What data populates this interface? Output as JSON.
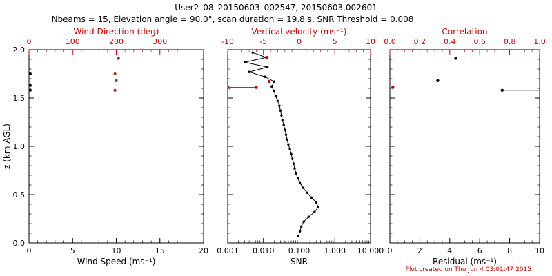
{
  "header": {
    "title": "User2_08_20150603_002547, 20150603.002601",
    "subtitle": "Nbeams = 15, Elevation angle = 90.0°, scan duration = 19.8 s, SNR Threshold = 0.008"
  },
  "footer": {
    "created": "Plot created on Thu Jun  4 03:01:47 2015"
  },
  "colors": {
    "axis_red": "#cc0000",
    "marker_dark_red": "#a03a22",
    "black": "#000000",
    "background": "#ffffff"
  },
  "y_axis": {
    "label": "z (km AGL)",
    "range": [
      0,
      2
    ],
    "ticks": [
      "0.0",
      "0.5",
      "1.0",
      "1.5",
      "2.0"
    ],
    "minor_step": 0.1
  },
  "chart_data": [
    {
      "type": "scatter",
      "id": "wind-panel",
      "bottom_axis": {
        "label": "Wind Speed (ms⁻¹)",
        "scale": "linear",
        "range": [
          0,
          20
        ],
        "ticks": [
          0,
          5,
          10,
          15,
          20
        ],
        "tick_labels": [
          "0",
          "5",
          "10",
          "15",
          "20"
        ],
        "minor_step": 1,
        "color": "#000000"
      },
      "top_axis": {
        "label": "Wind Direction (deg)",
        "scale": "linear",
        "range": [
          0,
          400
        ],
        "ticks": [
          0,
          100,
          200,
          300
        ],
        "tick_labels": [
          "0",
          "100",
          "200",
          "300"
        ],
        "minor_step": 20,
        "color": "#cc0000"
      },
      "series": [
        {
          "name": "wind-speed-points",
          "axis": "bottom",
          "color": "#000000",
          "marker": true,
          "marker_size": 2,
          "line": false,
          "points": [
            [
              0.15,
              1.75
            ],
            [
              0.15,
              1.63
            ],
            [
              0.15,
              1.58
            ]
          ]
        },
        {
          "name": "wind-direction-points",
          "axis": "top",
          "color": "#a03a22",
          "marker": true,
          "marker_size": 2.2,
          "line": false,
          "points": [
            [
              205,
              1.91
            ],
            [
              197,
              1.75
            ],
            [
              200,
              1.68
            ],
            [
              197,
              1.58
            ]
          ]
        }
      ]
    },
    {
      "type": "line",
      "id": "snr-panel",
      "bottom_axis": {
        "label": "SNR",
        "scale": "log",
        "range": [
          0.001,
          10
        ],
        "ticks": [
          0.001,
          0.01,
          0.1,
          1,
          10
        ],
        "tick_labels": [
          "0.001",
          "0.010",
          "0.100",
          "1.000",
          "10.000"
        ],
        "color": "#000000"
      },
      "top_axis": {
        "label": "Vertical velocity (ms⁻¹)",
        "scale": "linear",
        "range": [
          -10,
          10
        ],
        "ticks": [
          -10,
          -5,
          0,
          5,
          10
        ],
        "tick_labels": [
          "-10",
          "-5",
          "0",
          "5",
          "10"
        ],
        "minor_step": 1,
        "color": "#cc0000"
      },
      "reference_line": {
        "axis": "top",
        "value": 0,
        "color": "#cc0000",
        "style": "dotted"
      },
      "series": [
        {
          "name": "snr-profile",
          "axis": "bottom",
          "color": "#000000",
          "marker": true,
          "marker_size": 1.7,
          "line": true,
          "points": [
            [
              0.095,
              0.07
            ],
            [
              0.105,
              0.12
            ],
            [
              0.115,
              0.17
            ],
            [
              0.135,
              0.22
            ],
            [
              0.185,
              0.27
            ],
            [
              0.27,
              0.32
            ],
            [
              0.345,
              0.37
            ],
            [
              0.3,
              0.42
            ],
            [
              0.22,
              0.47
            ],
            [
              0.165,
              0.52
            ],
            [
              0.13,
              0.57
            ],
            [
              0.105,
              0.62
            ],
            [
              0.092,
              0.67
            ],
            [
              0.082,
              0.72
            ],
            [
              0.075,
              0.77
            ],
            [
              0.07,
              0.82
            ],
            [
              0.065,
              0.87
            ],
            [
              0.06,
              0.92
            ],
            [
              0.055,
              0.97
            ],
            [
              0.05,
              1.02
            ],
            [
              0.046,
              1.07
            ],
            [
              0.043,
              1.12
            ],
            [
              0.04,
              1.17
            ],
            [
              0.037,
              1.22
            ],
            [
              0.034,
              1.27
            ],
            [
              0.032,
              1.32
            ],
            [
              0.03,
              1.37
            ],
            [
              0.028,
              1.42
            ],
            [
              0.025,
              1.47
            ],
            [
              0.022,
              1.52
            ],
            [
              0.02,
              1.57
            ],
            [
              0.017,
              1.62
            ],
            [
              0.02,
              1.67
            ],
            [
              0.011,
              1.72
            ],
            [
              0.004,
              1.77
            ],
            [
              0.013,
              1.82
            ],
            [
              0.003,
              1.87
            ],
            [
              0.012,
              1.92
            ],
            [
              0.005,
              1.97
            ]
          ]
        },
        {
          "name": "vertical-velocity-points",
          "axis": "top",
          "color": "#cc0000",
          "marker": true,
          "marker_size": 2.2,
          "line": false,
          "points": [
            [
              -4.5,
              1.92
            ],
            [
              -4.2,
              1.67
            ]
          ]
        },
        {
          "name": "vertical-velocity-flagged",
          "axis": "top",
          "color": "#cc0000",
          "marker": true,
          "marker_size": 2.2,
          "line": false,
          "points": [
            [
              -6,
              1.61
            ]
          ],
          "whiskers": [
            {
              "z": 1.61,
              "x1": -10,
              "x2": -6,
              "arrow": "left"
            }
          ]
        }
      ]
    },
    {
      "type": "scatter",
      "id": "residual-panel",
      "bottom_axis": {
        "label": "Residual (ms⁻¹)",
        "scale": "linear",
        "range": [
          0,
          10
        ],
        "ticks": [
          0,
          2,
          4,
          6,
          8,
          10
        ],
        "tick_labels": [
          "0",
          "2",
          "4",
          "6",
          "8",
          "10"
        ],
        "minor_step": 0.5,
        "color": "#000000"
      },
      "top_axis": {
        "label": "Correlation",
        "scale": "linear",
        "range": [
          0,
          1
        ],
        "ticks": [
          0,
          0.2,
          0.4,
          0.6,
          0.8,
          1
        ],
        "tick_labels": [
          "0.0",
          "0.2",
          "0.4",
          "0.6",
          "0.8",
          "1.0"
        ],
        "minor_step": 0.05,
        "color": "#cc0000"
      },
      "series": [
        {
          "name": "correlation-points",
          "axis": "top",
          "color": "#000000",
          "marker": true,
          "marker_size": 2.2,
          "line": false,
          "points": [
            [
              0.44,
              1.91
            ],
            [
              0.32,
              1.68
            ],
            [
              0.75,
              1.58
            ]
          ],
          "whiskers": [
            {
              "z": 1.58,
              "x1": 0.75,
              "x2": 1.0
            }
          ]
        },
        {
          "name": "residual-flagged",
          "axis": "bottom",
          "color": "#cc0000",
          "marker": true,
          "marker_size": 2.2,
          "line": false,
          "points": [
            [
              0.2,
              1.61
            ]
          ]
        }
      ]
    }
  ]
}
